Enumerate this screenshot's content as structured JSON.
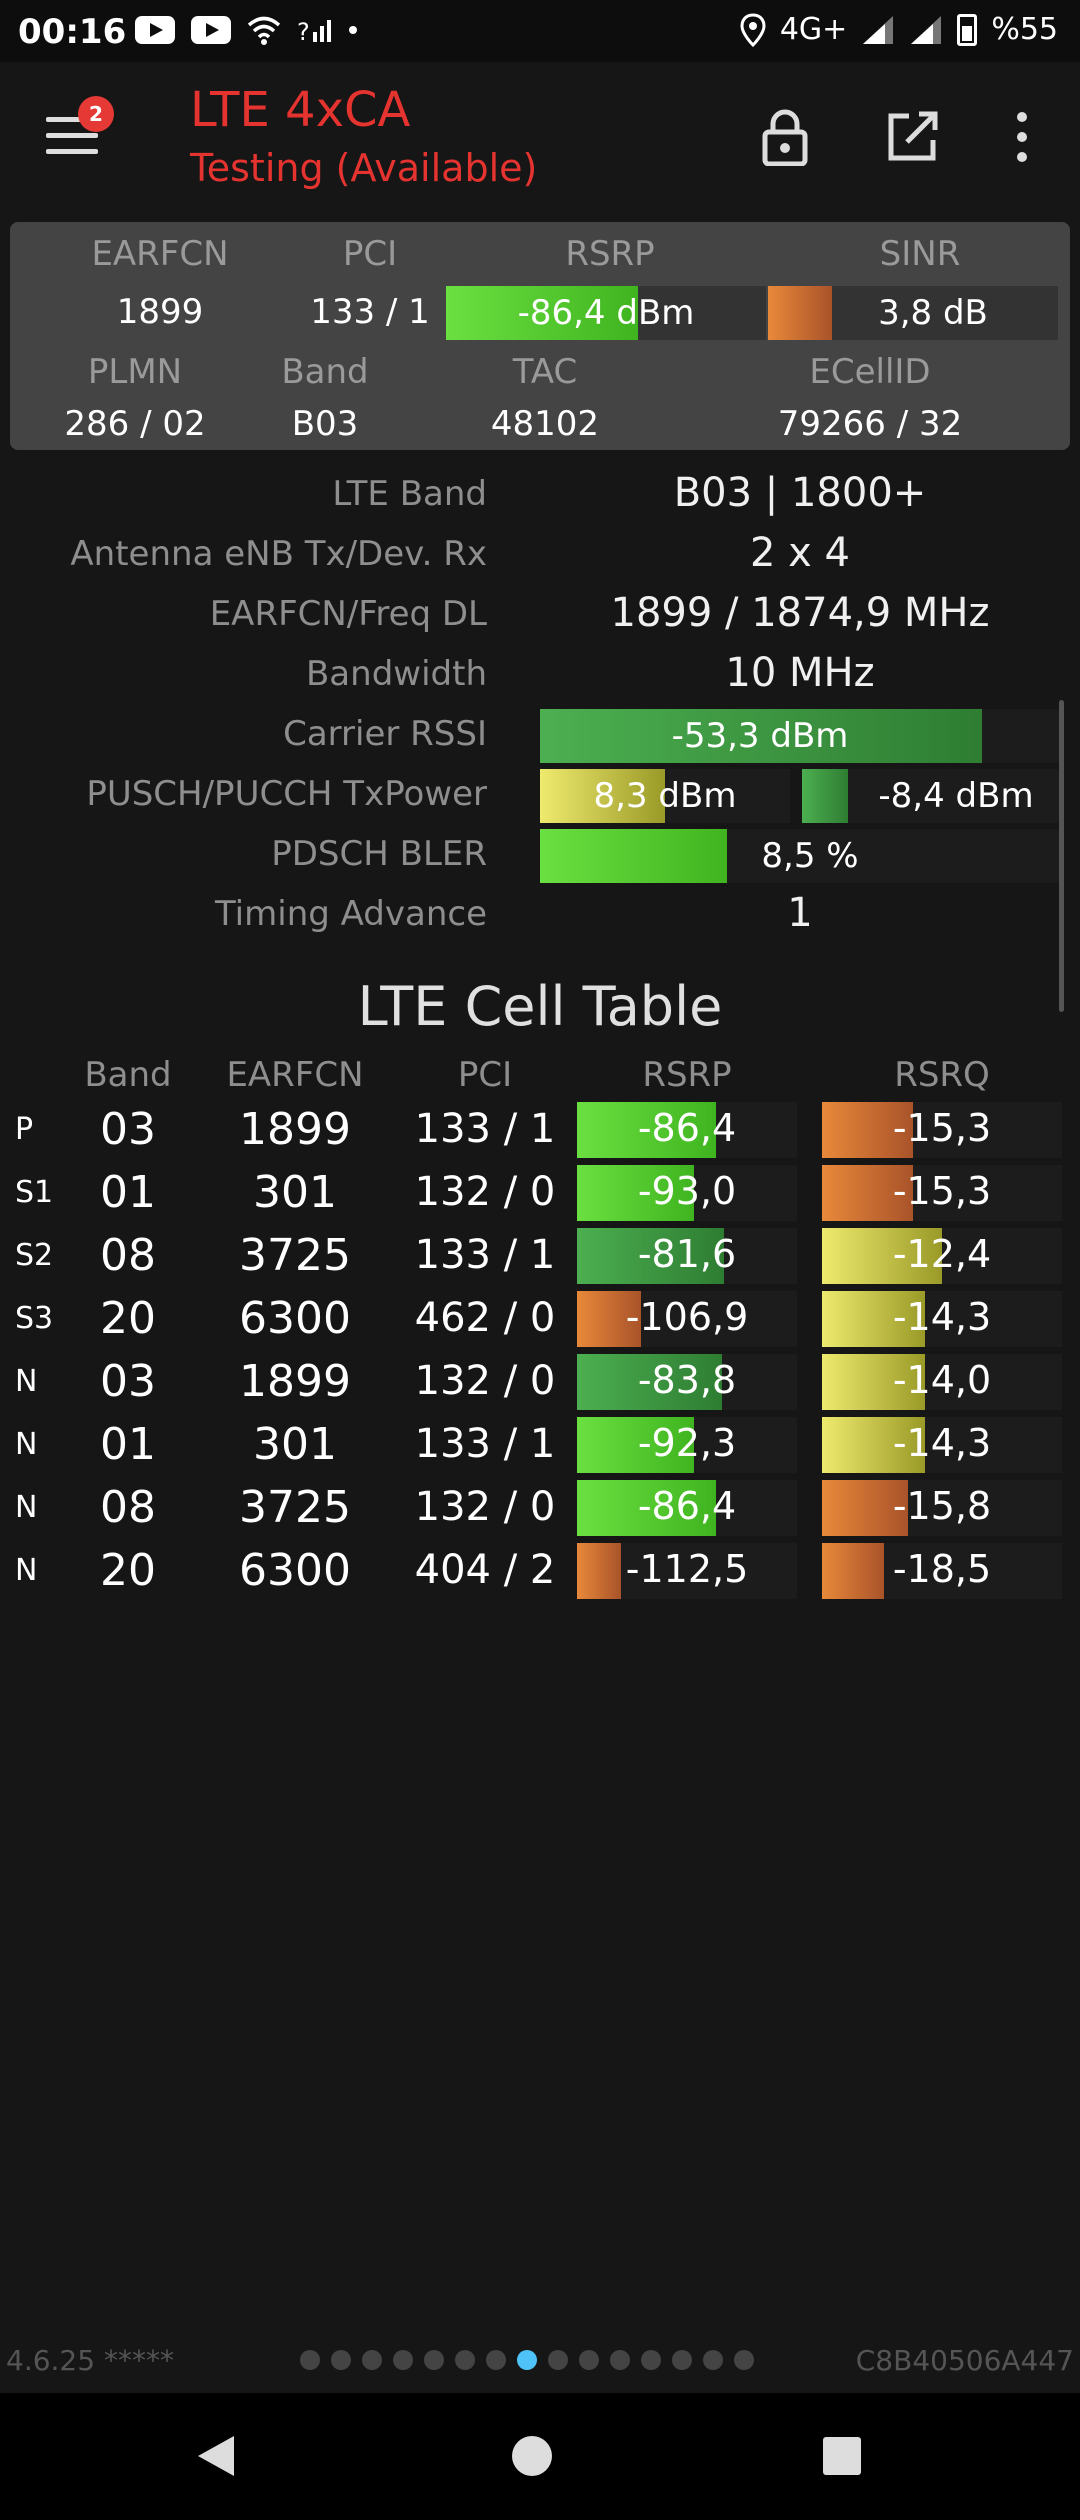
{
  "status_bar": {
    "time": "00:16",
    "network": "4G+",
    "battery": "%55",
    "icons": [
      "youtube-icon",
      "youtube-icon",
      "wifi-icon",
      "signal-icon",
      "dot-icon",
      "location-icon",
      "signal-icon",
      "signal-icon",
      "battery-icon"
    ]
  },
  "header": {
    "title": "LTE 4xCA",
    "subtitle": "Testing (Available)",
    "badge_count": "2",
    "actions": [
      "lock-icon",
      "open-external-icon",
      "more-vert-icon"
    ]
  },
  "summary": {
    "labels": {
      "earfcn": "EARFCN",
      "pci": "PCI",
      "rsrp": "RSRP",
      "sinr": "SINR",
      "plmn": "PLMN",
      "band": "Band",
      "tac": "TAC",
      "ecellid": "ECellID"
    },
    "earfcn": "1899",
    "pci": "133 / 1",
    "rsrp": "-86,4 dBm",
    "rsrp_level": 0.6,
    "sinr": "3,8 dB",
    "sinr_level": 0.22,
    "plmn": "286 / 02",
    "band": "B03",
    "tac": "48102",
    "ecellid": "79266 / 32"
  },
  "details": [
    {
      "label": "LTE Band",
      "value": "B03 | 1800+"
    },
    {
      "label": "Antenna eNB Tx/Dev. Rx",
      "value": "2 x 4"
    },
    {
      "label": "EARFCN/Freq DL",
      "value": "1899 / 1874,9 MHz"
    },
    {
      "label": "Bandwidth",
      "value": "10 MHz"
    }
  ],
  "meters": {
    "carrier_rssi": {
      "label": "Carrier RSSI",
      "value": "-53,3 dBm",
      "level": 0.85
    },
    "txpower": {
      "label": "PUSCH/PUCCH TxPower",
      "pusch": "8,3 dBm",
      "pusch_level": 0.5,
      "pucch": "-8,4 dBm",
      "pucch_level": 0.3
    },
    "bler": {
      "label": "PDSCH BLER",
      "value": "8,5 %",
      "level": 0.36
    },
    "timing_advance": {
      "label": "Timing Advance",
      "value": "1"
    }
  },
  "cell_table": {
    "title": "LTE Cell Table",
    "headers": {
      "band": "Band",
      "earfcn": "EARFCN",
      "pci": "PCI",
      "rsrp": "RSRP",
      "rsrq": "RSRQ"
    },
    "rows": [
      {
        "type": "P",
        "band": "03",
        "earfcn": "1899",
        "pci": "133 / 1",
        "rsrp": "-86,4",
        "rsrp_level": 0.63,
        "rsrp_color": "bright",
        "rsrq": "-15,3",
        "rsrq_level": 0.38,
        "rsrq_color": "orange"
      },
      {
        "type": "S1",
        "band": "01",
        "earfcn": "301",
        "pci": "132 / 0",
        "rsrp": "-93,0",
        "rsrp_level": 0.53,
        "rsrp_color": "bright",
        "rsrq": "-15,3",
        "rsrq_level": 0.38,
        "rsrq_color": "orange"
      },
      {
        "type": "S2",
        "band": "08",
        "earfcn": "3725",
        "pci": "133 / 1",
        "rsrp": "-81,6",
        "rsrp_level": 0.67,
        "rsrp_color": "dark",
        "rsrq": "-12,4",
        "rsrq_level": 0.5,
        "rsrq_color": "yellow"
      },
      {
        "type": "S3",
        "band": "20",
        "earfcn": "6300",
        "pci": "462 / 0",
        "rsrp": "-106,9",
        "rsrp_level": 0.29,
        "rsrp_color": "orange",
        "rsrq": "-14,3",
        "rsrq_level": 0.43,
        "rsrq_color": "yellow"
      },
      {
        "type": "N",
        "band": "03",
        "earfcn": "1899",
        "pci": "132 / 0",
        "rsrp": "-83,8",
        "rsrp_level": 0.66,
        "rsrp_color": "dark",
        "rsrq": "-14,0",
        "rsrq_level": 0.43,
        "rsrq_color": "yellow"
      },
      {
        "type": "N",
        "band": "01",
        "earfcn": "301",
        "pci": "133 / 1",
        "rsrp": "-92,3",
        "rsrp_level": 0.53,
        "rsrp_color": "bright",
        "rsrq": "-14,3",
        "rsrq_level": 0.43,
        "rsrq_color": "yellow"
      },
      {
        "type": "N",
        "band": "08",
        "earfcn": "3725",
        "pci": "132 / 0",
        "rsrp": "-86,4",
        "rsrp_level": 0.63,
        "rsrp_color": "bright",
        "rsrq": "-15,8",
        "rsrq_level": 0.36,
        "rsrq_color": "orange"
      },
      {
        "type": "N",
        "band": "20",
        "earfcn": "6300",
        "pci": "404 / 2",
        "rsrp": "-112,5",
        "rsrp_level": 0.2,
        "rsrp_color": "orange",
        "rsrq": "-18,5",
        "rsrq_level": 0.26,
        "rsrq_color": "orange"
      }
    ]
  },
  "footer": {
    "version": "4.6.25 *****",
    "device_id": "C8B40506A447",
    "page_count": 15,
    "active_page": 7
  },
  "colors": {
    "accent_red": "#e53330",
    "rsrp_green": "#6be041",
    "warn_orange": "#e8893a",
    "mid_yellow": "#eeea6e",
    "page_dot_active": "#4fc3f7"
  }
}
